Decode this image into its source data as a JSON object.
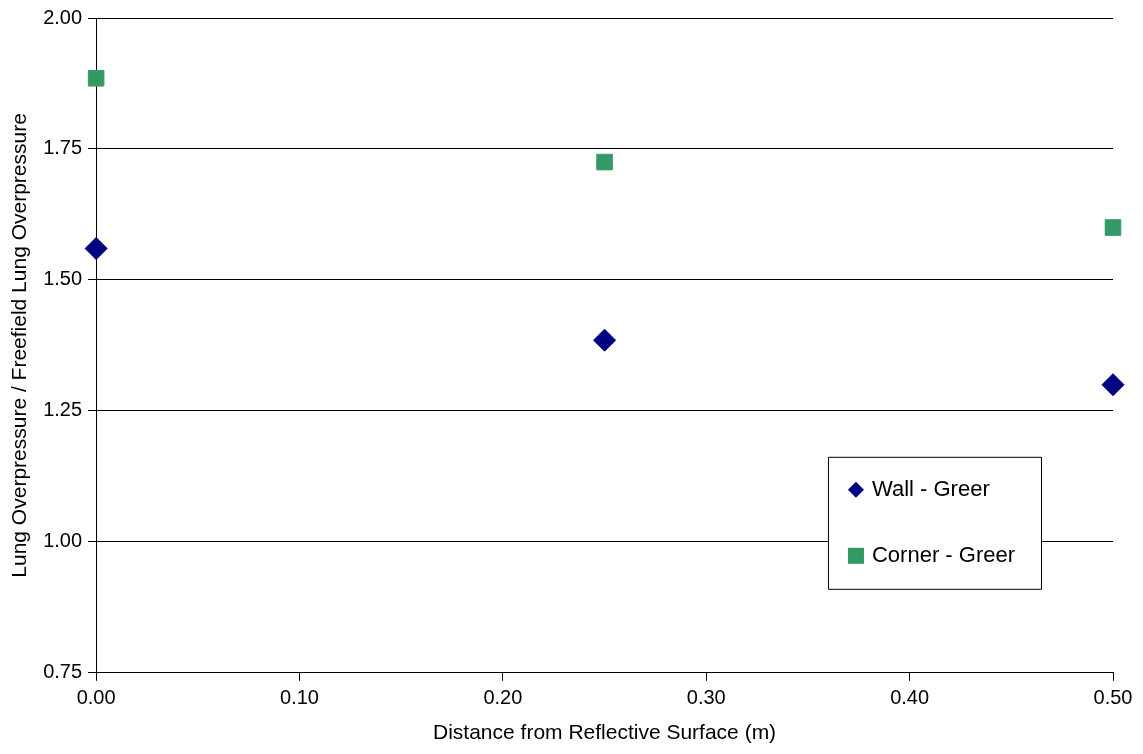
{
  "chart_data": {
    "type": "scatter",
    "xlabel": "Distance from Reflective Surface (m)",
    "ylabel": "Lung Overpressure / Freefield Lung Overpressure",
    "x": [
      0,
      0.25,
      0.5
    ],
    "series": [
      {
        "name": "Wall - Greer",
        "color": "#000080",
        "marker": "diamond",
        "values": [
          1.56,
          1.385,
          1.3
        ]
      },
      {
        "name": "Corner - Greer",
        "color": "#339966",
        "marker": "square",
        "values": [
          1.885,
          1.725,
          1.6
        ]
      }
    ],
    "xlim": [
      0,
      0.5
    ],
    "xticks": [
      {
        "value": 0,
        "label": "0.00"
      },
      {
        "value": 0.1,
        "label": "0.10"
      },
      {
        "value": 0.2,
        "label": "0.20"
      },
      {
        "value": 0.3,
        "label": "0.30"
      },
      {
        "value": 0.4,
        "label": "0.40"
      },
      {
        "value": 0.5,
        "label": "0.50"
      }
    ],
    "ylim": [
      0.75,
      2
    ],
    "yticks": [
      {
        "value": 0.75,
        "label": "0.75"
      },
      {
        "value": 1,
        "label": "1.00"
      },
      {
        "value": 1.25,
        "label": "1.25"
      },
      {
        "value": 1.5,
        "label": "1.50"
      },
      {
        "value": 1.75,
        "label": "1.75"
      },
      {
        "value": 2,
        "label": "2.00"
      }
    ],
    "grid": "y",
    "legend": "bottom right"
  }
}
